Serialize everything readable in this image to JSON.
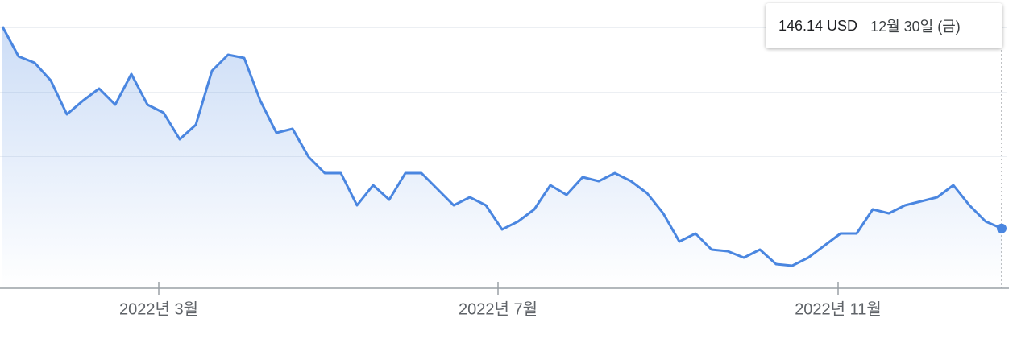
{
  "chart_data": {
    "type": "line",
    "color": "#4a86e0",
    "values": [
      196.3,
      188.9,
      187.3,
      182.9,
      174.5,
      177.9,
      180.9,
      176.9,
      184.5,
      176.9,
      174.9,
      168.3,
      171.9,
      185.3,
      189.3,
      188.5,
      177.9,
      169.9,
      170.9,
      163.9,
      159.9,
      159.9,
      151.9,
      156.9,
      153.3,
      159.9,
      159.9,
      155.9,
      151.9,
      153.9,
      151.9,
      145.9,
      147.9,
      150.9,
      156.9,
      154.5,
      158.9,
      157.9,
      159.9,
      157.9,
      154.9,
      149.9,
      142.9,
      144.9,
      140.9,
      140.5,
      138.9,
      140.9,
      137.3,
      136.9,
      138.9,
      141.9,
      144.9,
      144.9,
      150.9,
      149.9,
      151.9,
      152.9,
      153.9,
      156.9,
      151.9,
      147.9,
      146.14
    ],
    "xticks": [
      {
        "value": 9.7,
        "label": "2022년 3월"
      },
      {
        "value": 30.75,
        "label": "2022년 7월"
      },
      {
        "value": 51.85,
        "label": "2022년 11월"
      }
    ],
    "ylim": [
      131.3,
      202.9
    ],
    "yticks": [
      148,
      164,
      180,
      196
    ],
    "grid": true,
    "tooltip": {
      "label": "146.14 USD",
      "date": "12월 30일 (금)"
    }
  }
}
